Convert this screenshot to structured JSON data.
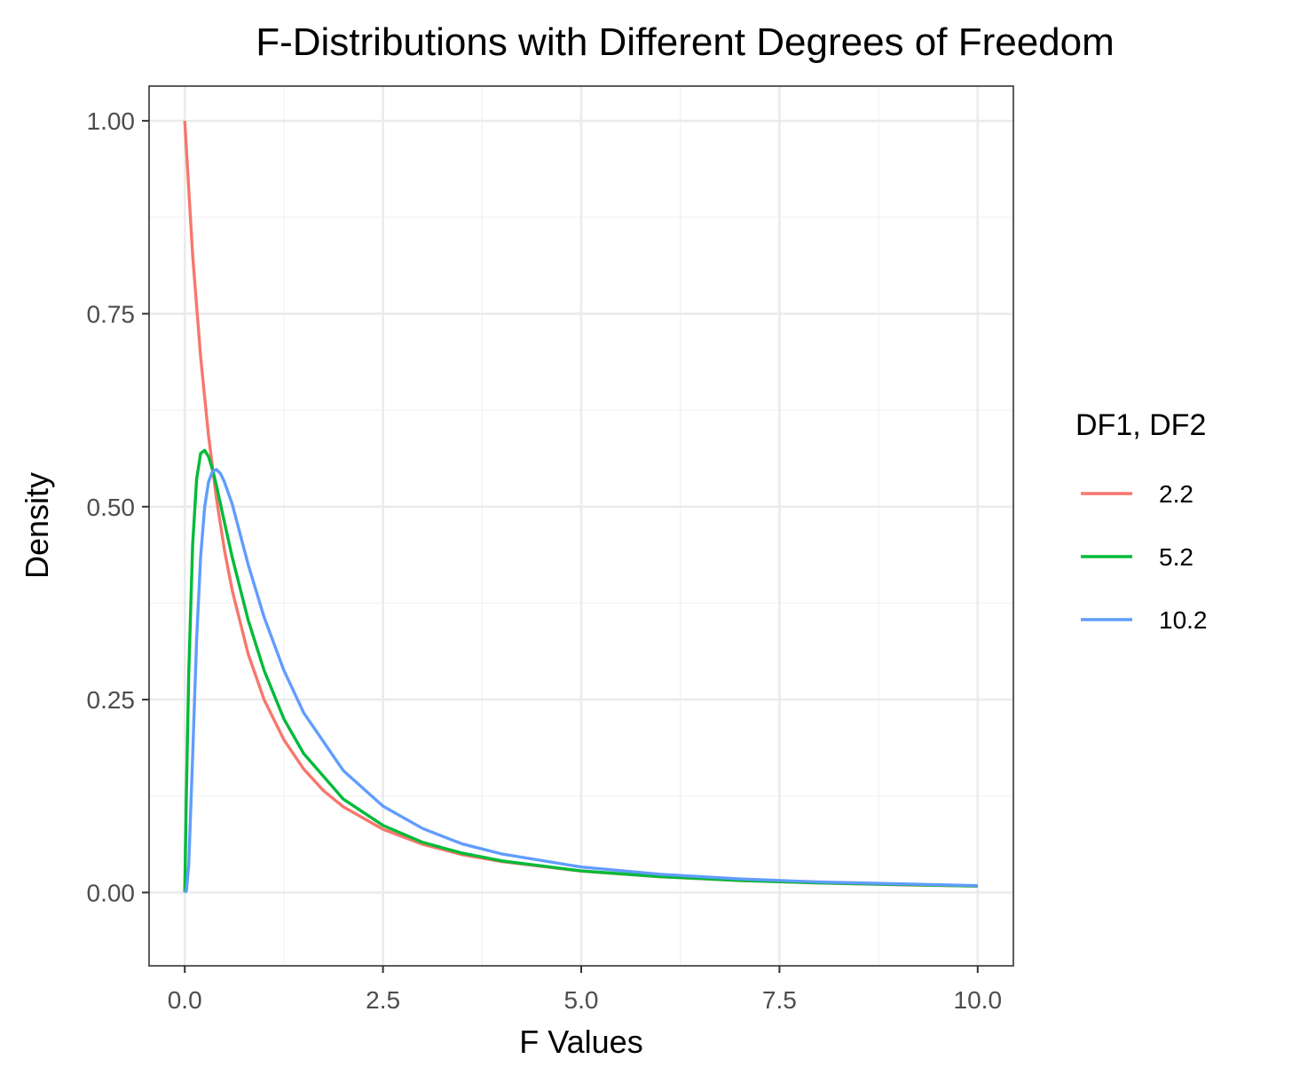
{
  "chart_data": {
    "type": "line",
    "title": "F-Distributions with Different Degrees of Freedom",
    "xlabel": "F Values",
    "ylabel": "Density",
    "xlim": [
      -0.45,
      10.45
    ],
    "ylim": [
      -0.095,
      1.045
    ],
    "x_ticks": [
      0,
      2.5,
      5,
      7.5,
      10
    ],
    "x_tick_labels": [
      "0.0",
      "2.5",
      "5.0",
      "7.5",
      "10.0"
    ],
    "y_ticks": [
      0,
      0.25,
      0.5,
      0.75,
      1
    ],
    "y_tick_labels": [
      "0.00",
      "0.25",
      "0.50",
      "0.75",
      "1.00"
    ],
    "x_minor": [
      1.25,
      3.75,
      6.25,
      8.75
    ],
    "y_minor": [
      0.125,
      0.375,
      0.625,
      0.875
    ],
    "grid": true,
    "legend": {
      "title": "DF1, DF2",
      "position": "right"
    },
    "series": [
      {
        "name": "2.2",
        "color": "#F8766D",
        "x": [
          0,
          0.1,
          0.2,
          0.3,
          0.4,
          0.5,
          0.6,
          0.8,
          1.0,
          1.25,
          1.5,
          1.75,
          2.0,
          2.5,
          3.0,
          3.5,
          4.0,
          5.0,
          6.0,
          7.0,
          8.0,
          9.0,
          10.0
        ],
        "y": [
          1.0,
          0.826,
          0.694,
          0.592,
          0.51,
          0.444,
          0.391,
          0.309,
          0.25,
          0.198,
          0.16,
          0.132,
          0.111,
          0.082,
          0.0625,
          0.049,
          0.04,
          0.0278,
          0.0204,
          0.0156,
          0.0123,
          0.01,
          0.0083
        ]
      },
      {
        "name": "5.2",
        "color": "#00BA38",
        "x": [
          0,
          0.02,
          0.05,
          0.1,
          0.15,
          0.2,
          0.25,
          0.3,
          0.35,
          0.4,
          0.5,
          0.6,
          0.8,
          1.0,
          1.25,
          1.5,
          2.0,
          2.5,
          3.0,
          3.5,
          4.0,
          5.0,
          6.0,
          7.0,
          8.0,
          10.0
        ],
        "y": [
          0,
          0.126,
          0.284,
          0.451,
          0.536,
          0.569,
          0.573,
          0.565,
          0.548,
          0.527,
          0.48,
          0.434,
          0.353,
          0.288,
          0.225,
          0.18,
          0.121,
          0.087,
          0.065,
          0.051,
          0.041,
          0.028,
          0.0206,
          0.0157,
          0.0124,
          0.0083
        ]
      },
      {
        "name": "10.2",
        "color": "#619CFF",
        "x": [
          0,
          0.02,
          0.05,
          0.1,
          0.15,
          0.2,
          0.25,
          0.3,
          0.35,
          0.4,
          0.45,
          0.5,
          0.6,
          0.8,
          1.0,
          1.25,
          1.5,
          2.0,
          2.5,
          3.0,
          3.5,
          4.0,
          5.0,
          6.0,
          7.0,
          8.0,
          10.0
        ],
        "y": [
          0,
          0.002,
          0.036,
          0.177,
          0.329,
          0.435,
          0.499,
          0.532,
          0.546,
          0.548,
          0.543,
          0.532,
          0.503,
          0.425,
          0.357,
          0.288,
          0.233,
          0.158,
          0.112,
          0.083,
          0.063,
          0.05,
          0.033,
          0.0236,
          0.0176,
          0.0136,
          0.0089
        ]
      }
    ]
  }
}
